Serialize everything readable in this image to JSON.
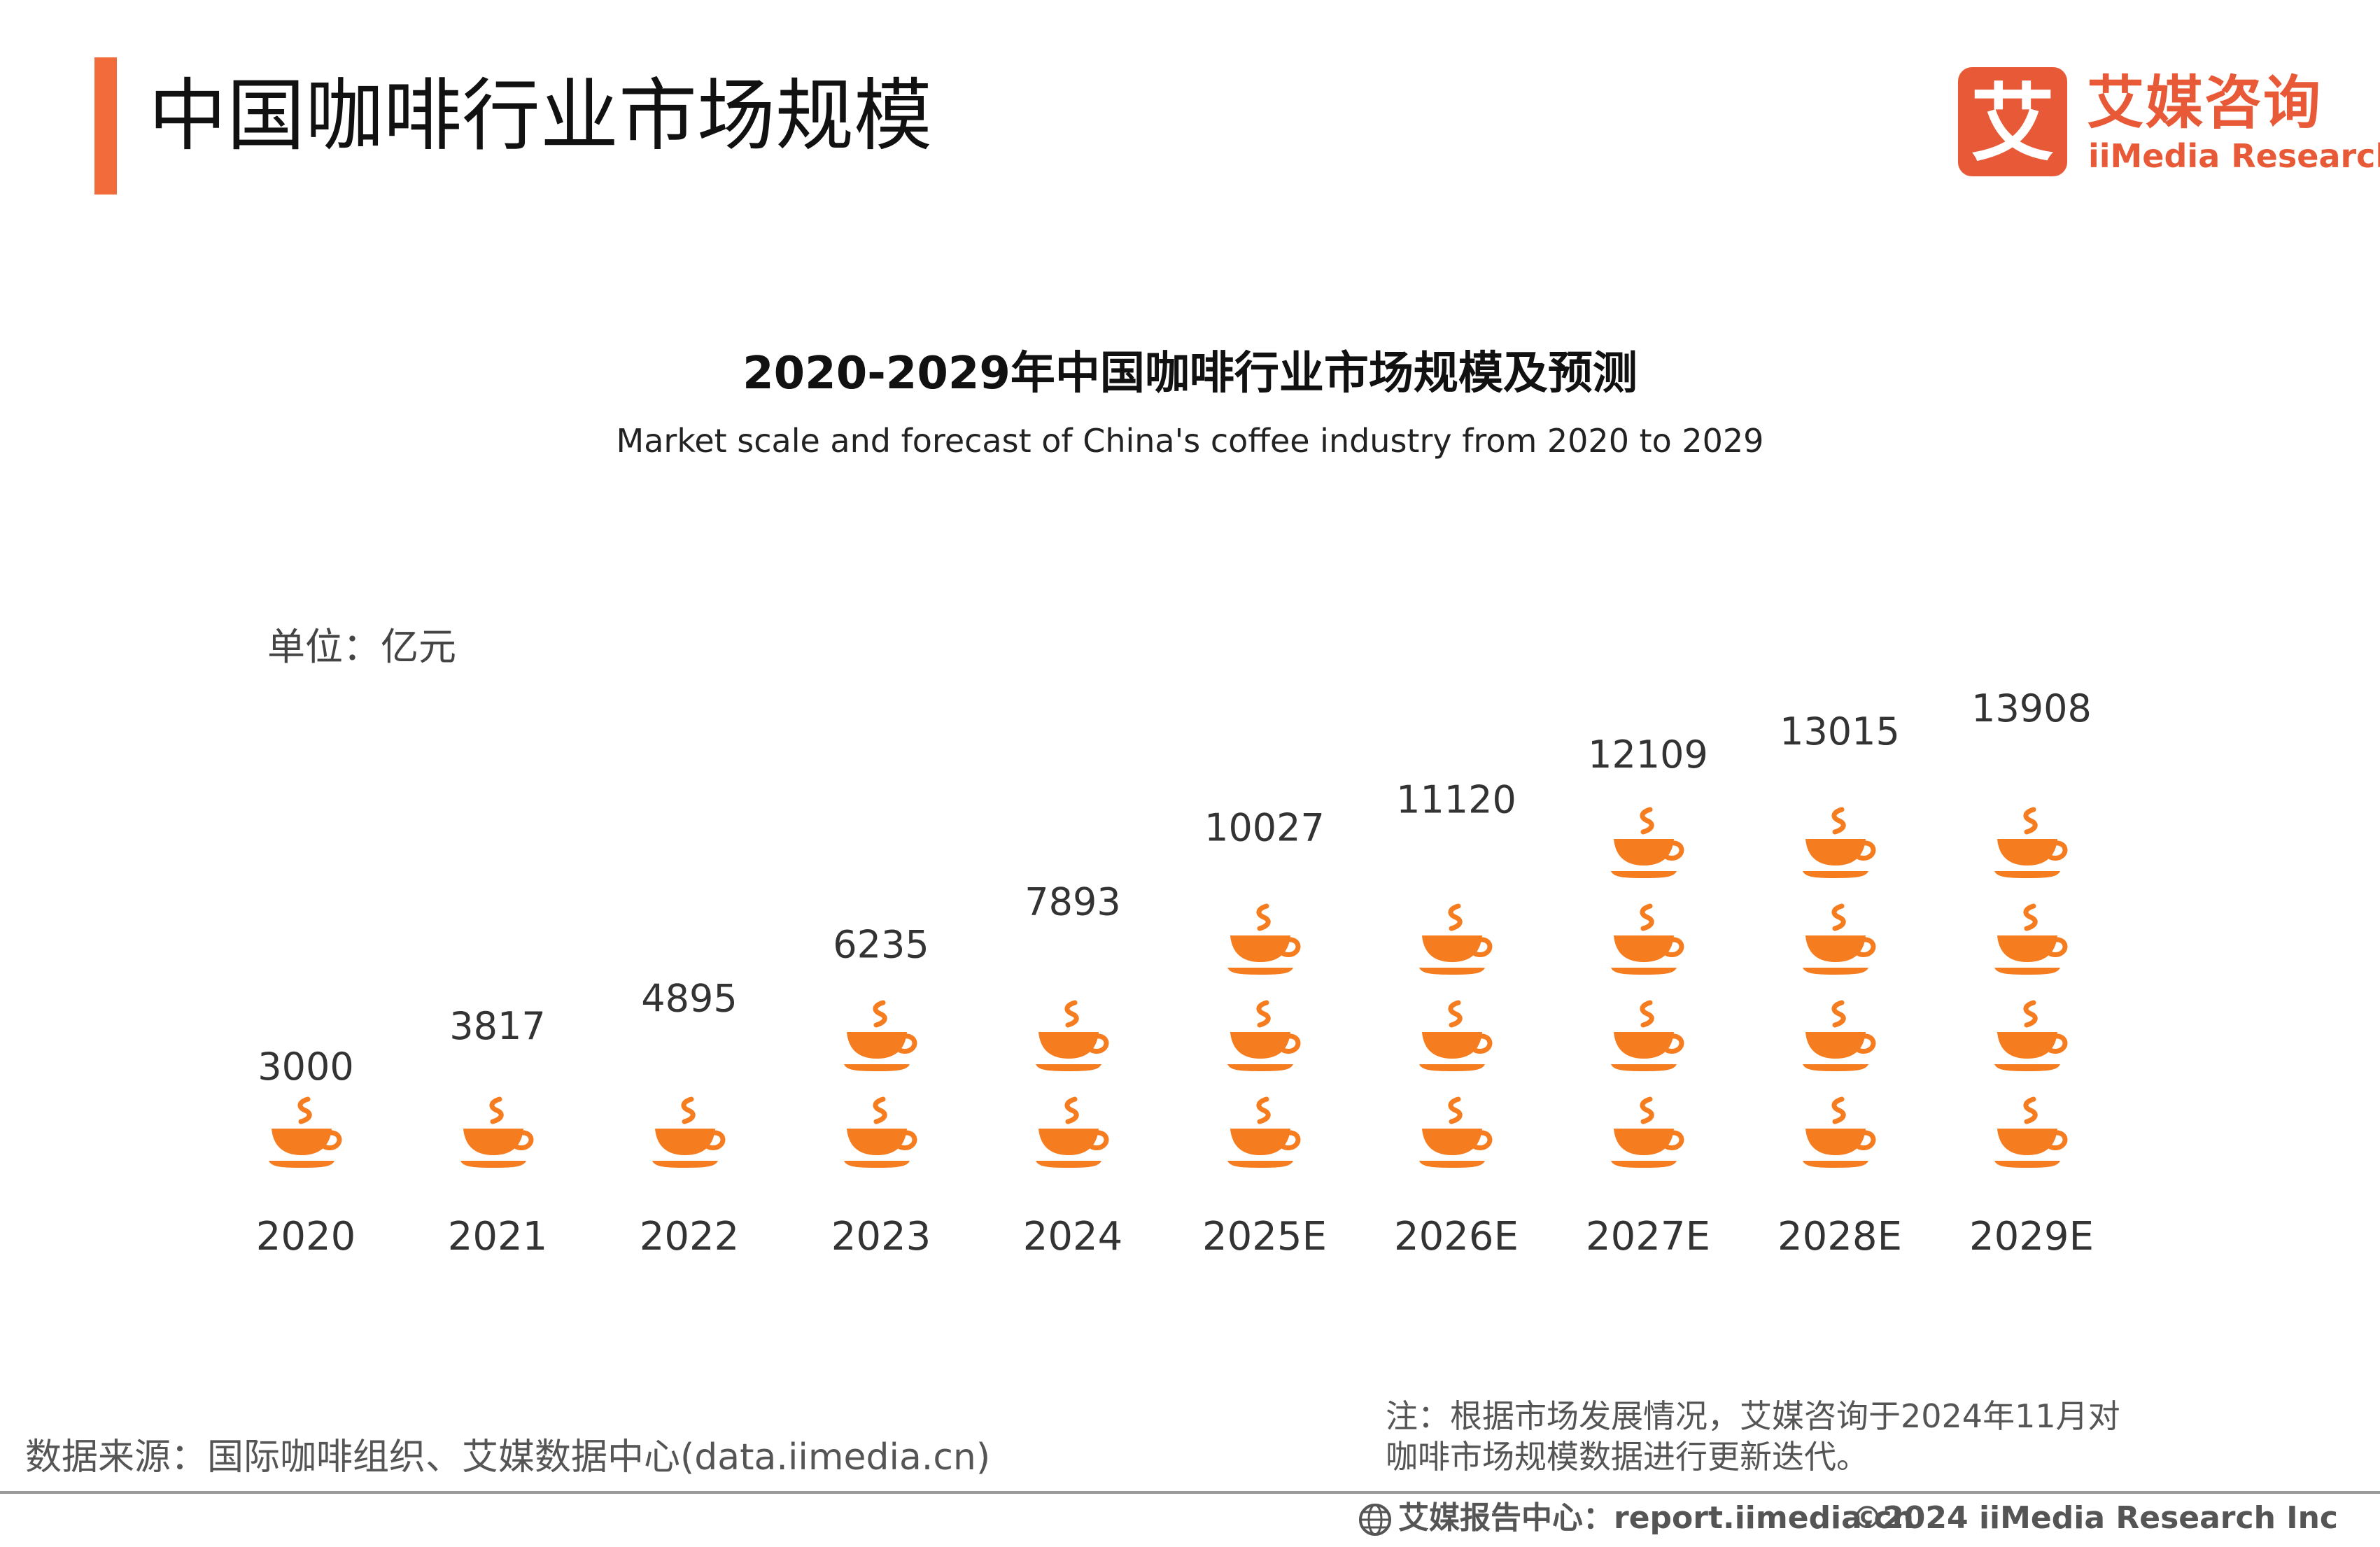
{
  "page": {
    "title": "中国咖啡行业市场规模"
  },
  "logo": {
    "mark_char": "艾",
    "cn": "艾媒咨询",
    "en": "iiMedia Research"
  },
  "chart_data": {
    "type": "bar",
    "style": "pictograph",
    "icon": "coffee-cup-icon",
    "units_per_icon": 3000,
    "title": "2020-2029年中国咖啡行业市场规模及预测",
    "subtitle": "Market scale and forecast of China's coffee industry from 2020 to 2029",
    "unit_label": "单位：亿元",
    "categories": [
      "2020",
      "2021",
      "2022",
      "2023",
      "2024",
      "2025E",
      "2026E",
      "2027E",
      "2028E",
      "2029E"
    ],
    "values": [
      3000,
      3817,
      4895,
      6235,
      7893,
      10027,
      11120,
      12109,
      13015,
      13908
    ],
    "value_labels": [
      "3000",
      "3817",
      "4895",
      "6235",
      "7893",
      "10027",
      "11120",
      "12109",
      "13015",
      "13908"
    ],
    "xlabel": "",
    "ylabel": "",
    "grid": false,
    "legend": "none"
  },
  "colors": {
    "accent": "#f26b3a",
    "icon": "#f57c1f",
    "brand": "#e85a37",
    "text": "#222222",
    "muted": "#555555"
  },
  "footer": {
    "source": "数据来源：国际咖啡组织、艾媒数据中心(data.iimedia.cn)",
    "note_line1": "注：根据市场发展情况，艾媒咨询于2024年11月对",
    "note_line2": "咖啡市场规模数据进行更新迭代。",
    "report": "艾媒报告中心：report.iimedia.cn",
    "copyright": "©2024  iiMedia Research  Inc"
  }
}
